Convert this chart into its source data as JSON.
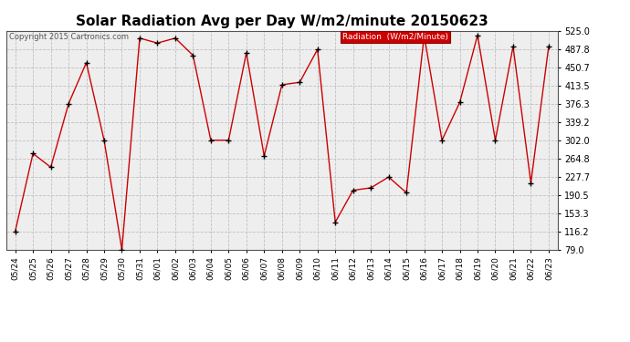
{
  "title": "Solar Radiation Avg per Day W/m2/minute 20150623",
  "copyright": "Copyright 2015 Cartronics.com",
  "legend_label": "Radiation  (W/m2/Minute)",
  "dates": [
    "05/24",
    "05/25",
    "05/26",
    "05/27",
    "05/28",
    "05/29",
    "05/30",
    "05/31",
    "06/01",
    "06/02",
    "06/03",
    "06/04",
    "06/05",
    "06/06",
    "06/07",
    "06/08",
    "06/09",
    "06/10",
    "06/11",
    "06/12",
    "06/13",
    "06/14",
    "06/15",
    "06/16",
    "06/17",
    "06/18",
    "06/19",
    "06/20",
    "06/21",
    "06/22",
    "06/23"
  ],
  "values": [
    116.2,
    275.0,
    247.0,
    376.3,
    460.0,
    302.0,
    79.0,
    510.0,
    500.0,
    510.0,
    475.0,
    302.0,
    302.0,
    480.0,
    270.0,
    415.0,
    420.0,
    487.0,
    135.0,
    200.0,
    205.0,
    227.0,
    195.0,
    515.0,
    302.0,
    379.0,
    516.0,
    302.0,
    493.0,
    215.0,
    493.0
  ],
  "ylim": [
    79.0,
    525.0
  ],
  "yticks": [
    79.0,
    116.2,
    153.3,
    190.5,
    227.7,
    264.8,
    302.0,
    339.2,
    376.3,
    413.5,
    450.7,
    487.8,
    525.0
  ],
  "line_color": "#cc0000",
  "marker_color": "#000000",
  "grid_color": "#bbbbbb",
  "bg_color": "#ffffff",
  "plot_bg_color": "#eeeeee",
  "title_fontsize": 11,
  "legend_bg": "#cc0000",
  "legend_text_color": "#ffffff",
  "copyright_color": "#555555"
}
